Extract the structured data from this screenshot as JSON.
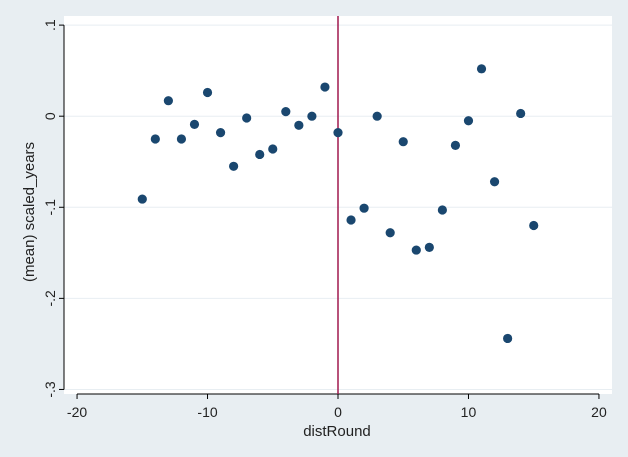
{
  "chart_data": {
    "type": "scatter",
    "title": "",
    "xlabel": "distRound",
    "ylabel": "(mean) scaled_years",
    "xlim": [
      -21,
      21
    ],
    "ylim": [
      -0.305,
      0.11
    ],
    "xticks": [
      -20,
      -10,
      0,
      10,
      20
    ],
    "xtick_labels": [
      "-20",
      "-10",
      "0",
      "10",
      "20"
    ],
    "yticks": [
      -0.3,
      -0.2,
      -0.1,
      0,
      0.1
    ],
    "ytick_labels": [
      "-.3",
      "-.2",
      "-.1",
      "0",
      ".1"
    ],
    "grid": true,
    "reference_line_x": 0,
    "colors": {
      "background": "#e8eef2",
      "plot_area": "#ffffff",
      "gridline": "#e8eef2",
      "marker": "#1a476f",
      "reference_line": "#a0194f",
      "axis": "#000000"
    },
    "x": [
      -15,
      -14,
      -13,
      -12,
      -11,
      -10,
      -9,
      -8,
      -7,
      -6,
      -5,
      -4,
      -3,
      -2,
      -1,
      0,
      1,
      2,
      3,
      4,
      5,
      6,
      7,
      8,
      9,
      10,
      11,
      12,
      13,
      14,
      15
    ],
    "y": [
      -0.091,
      -0.025,
      0.017,
      -0.025,
      -0.009,
      0.026,
      -0.018,
      -0.055,
      -0.002,
      -0.042,
      -0.036,
      0.005,
      -0.01,
      0.0,
      0.032,
      -0.018,
      -0.114,
      -0.101,
      0.0,
      -0.128,
      -0.028,
      -0.147,
      -0.144,
      -0.103,
      -0.032,
      -0.005,
      0.052,
      -0.072,
      -0.244,
      0.003,
      -0.12
    ]
  }
}
